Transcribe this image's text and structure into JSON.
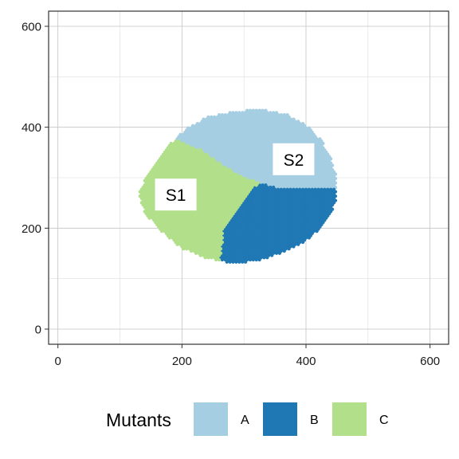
{
  "chart_data": {
    "type": "scatter",
    "title": "",
    "xlabel": "",
    "ylabel": "",
    "xlim": [
      -15,
      630
    ],
    "ylim": [
      -30,
      630
    ],
    "x_ticks": [
      0,
      200,
      400,
      600
    ],
    "y_ticks": [
      0,
      200,
      400,
      600
    ],
    "grid": true,
    "legend": {
      "title": "Mutants",
      "position": "bottom",
      "entries": [
        {
          "label": "A",
          "color": "#a6cee3"
        },
        {
          "label": "B",
          "color": "#1f78b4"
        },
        {
          "label": "C",
          "color": "#b2df8a"
        }
      ]
    },
    "colony": {
      "cell_spacing": 5,
      "outline_x": [
        130,
        150,
        175,
        205,
        240,
        285,
        330,
        370,
        400,
        425,
        440,
        450,
        450,
        440,
        420,
        395,
        360,
        320,
        280,
        240,
        200,
        165,
        140
      ],
      "outline_y": [
        270,
        320,
        360,
        395,
        420,
        432,
        435,
        425,
        405,
        375,
        340,
        300,
        260,
        225,
        195,
        170,
        150,
        135,
        130,
        140,
        160,
        195,
        230
      ],
      "series": [
        {
          "name": "A",
          "color": "#a6cee3",
          "description_region": "top cap above boundary from (190,375) through (260,330), (300,300), (350,280) to (450,280)"
        },
        {
          "name": "B",
          "color": "#1f78b4",
          "description_region": "lower right below y=280, right of boundary from (330,280) through (300,240), (270,200) to (260,130)"
        },
        {
          "name": "C",
          "color": "#b2df8a",
          "description_region": "left section"
        }
      ]
    },
    "annotations": [
      {
        "text": "S1",
        "x": 190,
        "y": 265
      },
      {
        "text": "S2",
        "x": 380,
        "y": 335
      }
    ]
  }
}
